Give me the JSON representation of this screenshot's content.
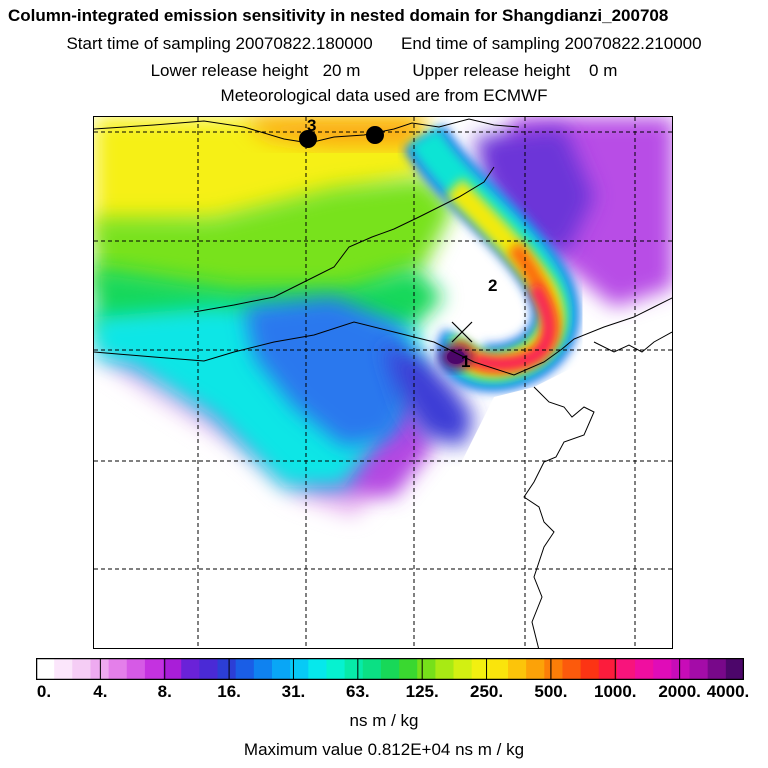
{
  "title": {
    "line1": "Column-integrated emission sensitivity in nested domain for Shangdianzi_200708",
    "start": "Start time of sampling 20070822.180000",
    "end": "End time of sampling 20070822.210000",
    "lower": "Lower release height   20 m",
    "upper": "Upper release height    0 m",
    "met": "Meteorological data used are from ECMWF"
  },
  "map": {
    "markers": [
      {
        "label": "1",
        "kind": "receptor-cross"
      },
      {
        "label": "2",
        "kind": "text"
      },
      {
        "label": "3",
        "kind": "dot"
      }
    ]
  },
  "colorbar": {
    "tick_labels": [
      "0.",
      "4.",
      "8.",
      "16.",
      "31.",
      "63.",
      "125.",
      "250.",
      "500.",
      "1000.",
      "2000.",
      "4000."
    ],
    "colors": [
      "#ffffff",
      "#fbe6fb",
      "#f5cdf5",
      "#eeaaf0",
      "#e47fea",
      "#d65ae6",
      "#c432e0",
      "#a91ed8",
      "#6a22d8",
      "#4a2ad6",
      "#2c3ed6",
      "#1a5ee6",
      "#0f82f0",
      "#09a6f6",
      "#07caf6",
      "#06e8ec",
      "#06f2d0",
      "#07eaa8",
      "#0be084",
      "#18d858",
      "#3ad830",
      "#76e01a",
      "#a8ea14",
      "#d2f012",
      "#f2f010",
      "#fae40c",
      "#fcc40a",
      "#fca208",
      "#fc7e08",
      "#fc5a0c",
      "#fc3414",
      "#fc1c3c",
      "#f8147c",
      "#f00ea0",
      "#e00cb8",
      "#c80cb8",
      "#a40ca8",
      "#78088a",
      "#4c066a"
    ],
    "unit": "ns m / kg",
    "max_value": "Maximum value  0.812E+04 ns m / kg"
  }
}
